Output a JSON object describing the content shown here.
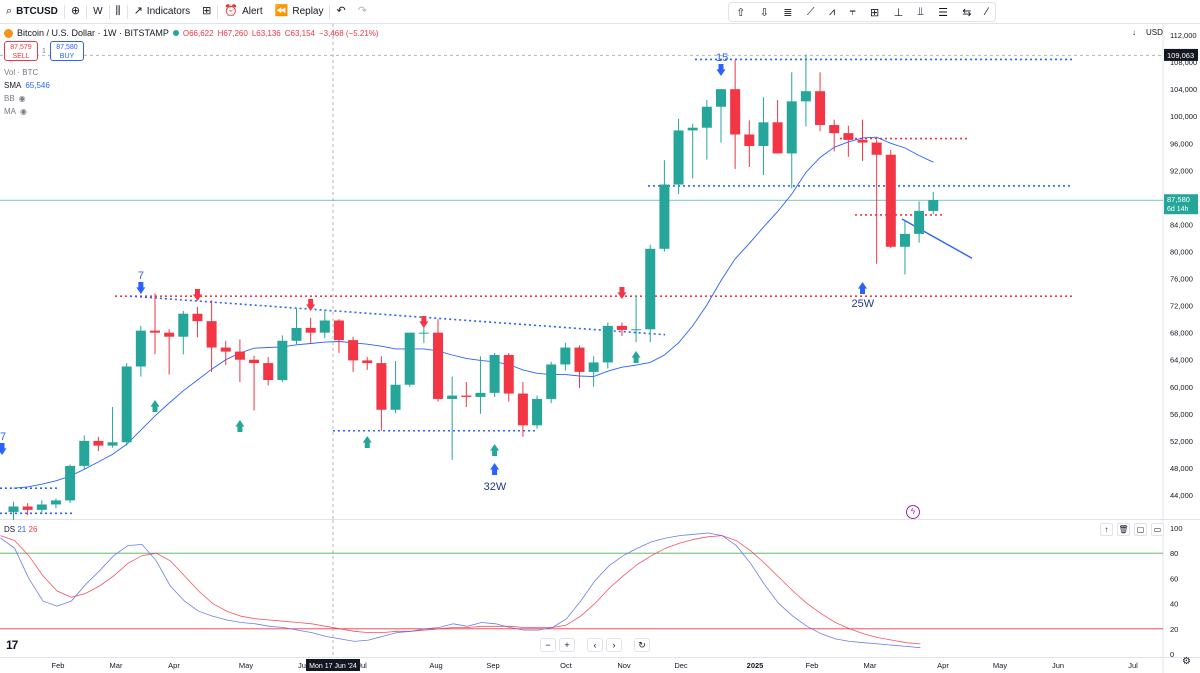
{
  "toolbar": {
    "symbol": "BTCUSD",
    "interval": "W",
    "indicators_label": "Indicators",
    "alert_label": "Alert",
    "replay_label": "Replay"
  },
  "legend": {
    "title": "Bitcoin / U.S. Dollar · 1W · BITSTAMP",
    "open": "O66,622",
    "high": "H67,260",
    "low": "L63,136",
    "close": "C63,154",
    "change": "−3,468 (−5.21%)",
    "sell_price": "87,579",
    "sell_label": "SELL",
    "spread": "1",
    "buy_price": "87,580",
    "buy_label": "BUY",
    "vol_label": "Vol · BTC",
    "sma_label": "SMA",
    "sma_value": "65,546",
    "bb_label": "BB",
    "ma_label": "MA"
  },
  "right_controls": {
    "currency": "USD"
  },
  "price_axis": {
    "ticks": [
      "112,000",
      "108,000",
      "104,000",
      "100,000",
      "96,000",
      "92,000",
      "88,000",
      "84,000",
      "80,000",
      "76,000",
      "72,000",
      "68,000",
      "64,000",
      "60,000",
      "56,000",
      "52,000",
      "48,000",
      "44,000"
    ],
    "last_price_label": "87,580",
    "countdown": "6d 14h",
    "high_label": "109,063"
  },
  "time_axis": {
    "labels": [
      "Feb",
      "Mar",
      "Apr",
      "May",
      "Jun",
      "Jul",
      "Aug",
      "Sep",
      "Oct",
      "Nov",
      "Dec",
      "2025",
      "Feb",
      "Mar",
      "Apr",
      "May",
      "Jun",
      "Jul"
    ],
    "crosshair_label": "Mon 17 Jun '24"
  },
  "annotations": {
    "label_15": "15",
    "label_7": "7",
    "label_7_edge": "7",
    "label_32w": "32W",
    "label_25w": "25W"
  },
  "oscillator": {
    "name": "DS",
    "param1": "21",
    "param2": "26",
    "ticks": [
      "100",
      "80",
      "60",
      "40",
      "20",
      "0"
    ]
  },
  "colors": {
    "up": "#26a69a",
    "down": "#f23645",
    "sma": "#2962ff",
    "annotation_blue": "#2962ff",
    "annotation_red": "#f23645"
  },
  "chart_data": {
    "type": "candlestick",
    "ylim": [
      40000,
      114000
    ],
    "candles": [
      {
        "o": 41500,
        "h": 43000,
        "l": 39800,
        "c": 42300
      },
      {
        "o": 42300,
        "h": 42800,
        "l": 41000,
        "c": 41800
      },
      {
        "o": 41800,
        "h": 43200,
        "l": 41200,
        "c": 42600
      },
      {
        "o": 42600,
        "h": 43500,
        "l": 42000,
        "c": 43200
      },
      {
        "o": 43200,
        "h": 48500,
        "l": 42800,
        "c": 48300
      },
      {
        "o": 48300,
        "h": 52800,
        "l": 47800,
        "c": 52000
      },
      {
        "o": 52000,
        "h": 52600,
        "l": 50500,
        "c": 51300
      },
      {
        "o": 51300,
        "h": 57000,
        "l": 51000,
        "c": 51800
      },
      {
        "o": 51800,
        "h": 63500,
        "l": 51300,
        "c": 63000
      },
      {
        "o": 63000,
        "h": 69000,
        "l": 61500,
        "c": 68300
      },
      {
        "o": 68300,
        "h": 73800,
        "l": 64800,
        "c": 68000
      },
      {
        "o": 68000,
        "h": 68500,
        "l": 61800,
        "c": 67400
      },
      {
        "o": 67400,
        "h": 71200,
        "l": 64800,
        "c": 70800
      },
      {
        "o": 70800,
        "h": 71800,
        "l": 67300,
        "c": 69700
      },
      {
        "o": 69700,
        "h": 72800,
        "l": 62200,
        "c": 65800
      },
      {
        "o": 65800,
        "h": 66800,
        "l": 63200,
        "c": 65200
      },
      {
        "o": 65200,
        "h": 67000,
        "l": 60700,
        "c": 64000
      },
      {
        "o": 64000,
        "h": 64600,
        "l": 56500,
        "c": 63500
      },
      {
        "o": 63500,
        "h": 64400,
        "l": 60200,
        "c": 61000
      },
      {
        "o": 61000,
        "h": 67600,
        "l": 60700,
        "c": 66800
      },
      {
        "o": 66800,
        "h": 71600,
        "l": 66300,
        "c": 68700
      },
      {
        "o": 68700,
        "h": 70200,
        "l": 66500,
        "c": 68000
      },
      {
        "o": 68000,
        "h": 71400,
        "l": 67200,
        "c": 69800
      },
      {
        "o": 69800,
        "h": 70000,
        "l": 65000,
        "c": 66900
      },
      {
        "o": 66900,
        "h": 67400,
        "l": 62200,
        "c": 63900
      },
      {
        "o": 63900,
        "h": 64400,
        "l": 62500,
        "c": 63500
      },
      {
        "o": 63500,
        "h": 64500,
        "l": 53500,
        "c": 56600
      },
      {
        "o": 56600,
        "h": 63800,
        "l": 56100,
        "c": 60300
      },
      {
        "o": 60300,
        "h": 68000,
        "l": 60000,
        "c": 68000
      },
      {
        "o": 68000,
        "h": 70000,
        "l": 66500,
        "c": 68000
      },
      {
        "o": 68000,
        "h": 70000,
        "l": 57800,
        "c": 58200
      },
      {
        "o": 58200,
        "h": 61500,
        "l": 49200,
        "c": 58700
      },
      {
        "o": 58700,
        "h": 60700,
        "l": 57000,
        "c": 58500
      },
      {
        "o": 58500,
        "h": 64500,
        "l": 56000,
        "c": 59100
      },
      {
        "o": 59100,
        "h": 65000,
        "l": 58500,
        "c": 64700
      },
      {
        "o": 64700,
        "h": 65000,
        "l": 57800,
        "c": 59000
      },
      {
        "o": 59000,
        "h": 60700,
        "l": 52600,
        "c": 54300
      },
      {
        "o": 54300,
        "h": 58700,
        "l": 53800,
        "c": 58200
      },
      {
        "o": 58200,
        "h": 63700,
        "l": 57600,
        "c": 63300
      },
      {
        "o": 63300,
        "h": 66500,
        "l": 62400,
        "c": 65800
      },
      {
        "o": 65800,
        "h": 66100,
        "l": 59800,
        "c": 62200
      },
      {
        "o": 62200,
        "h": 64500,
        "l": 60000,
        "c": 63600
      },
      {
        "o": 63600,
        "h": 69500,
        "l": 62700,
        "c": 69000
      },
      {
        "o": 69000,
        "h": 69500,
        "l": 67500,
        "c": 68400
      },
      {
        "o": 68400,
        "h": 73500,
        "l": 66600,
        "c": 68500
      },
      {
        "o": 68500,
        "h": 81000,
        "l": 66600,
        "c": 80400
      },
      {
        "o": 80400,
        "h": 93500,
        "l": 80000,
        "c": 89900
      },
      {
        "o": 89900,
        "h": 99600,
        "l": 88500,
        "c": 97900
      },
      {
        "o": 97900,
        "h": 98900,
        "l": 90800,
        "c": 98300
      },
      {
        "o": 98300,
        "h": 102400,
        "l": 93600,
        "c": 101400
      },
      {
        "o": 101400,
        "h": 104000,
        "l": 96100,
        "c": 104000
      },
      {
        "o": 104000,
        "h": 108300,
        "l": 92200,
        "c": 97300
      },
      {
        "o": 97300,
        "h": 99400,
        "l": 92500,
        "c": 95600
      },
      {
        "o": 95600,
        "h": 102800,
        "l": 91300,
        "c": 99100
      },
      {
        "o": 99100,
        "h": 102400,
        "l": 94500,
        "c": 94500
      },
      {
        "o": 94500,
        "h": 106500,
        "l": 89300,
        "c": 102200
      },
      {
        "o": 102200,
        "h": 109100,
        "l": 98500,
        "c": 103700
      },
      {
        "o": 103700,
        "h": 106500,
        "l": 97800,
        "c": 98700
      },
      {
        "o": 98700,
        "h": 99500,
        "l": 94800,
        "c": 97500
      },
      {
        "o": 97500,
        "h": 98600,
        "l": 94000,
        "c": 96500
      },
      {
        "o": 96500,
        "h": 99500,
        "l": 93400,
        "c": 96100
      },
      {
        "o": 96100,
        "h": 96500,
        "l": 78200,
        "c": 94300
      },
      {
        "o": 94300,
        "h": 95000,
        "l": 80500,
        "c": 80700
      },
      {
        "o": 80700,
        "h": 84500,
        "l": 76600,
        "c": 82600
      },
      {
        "o": 82600,
        "h": 87400,
        "l": 81300,
        "c": 86000
      },
      {
        "o": 86000,
        "h": 88800,
        "l": 85500,
        "c": 87580
      }
    ],
    "sma": [
      45000,
      45200,
      45600,
      46100,
      46800,
      47800,
      48900,
      50000,
      51500,
      53600,
      55700,
      57600,
      59400,
      61000,
      62600,
      64000,
      65000,
      65700,
      65800,
      65900,
      66200,
      66400,
      66600,
      66700,
      66500,
      66300,
      66000,
      65600,
      65600,
      65600,
      65300,
      64700,
      64200,
      63900,
      63700,
      63300,
      62500,
      62000,
      61800,
      61800,
      61600,
      61500,
      62300,
      62900,
      63200,
      63600,
      64700,
      66500,
      69000,
      72100,
      75700,
      78900,
      81200,
      83600,
      85900,
      88500,
      91700,
      93900,
      95400,
      96200,
      96800,
      96900,
      96000,
      95300,
      94200,
      93200
    ],
    "oscillator": {
      "ylim": [
        0,
        100
      ],
      "levels": [
        80,
        20
      ],
      "fast": [
        92,
        84,
        60,
        42,
        38,
        42,
        55,
        66,
        78,
        86,
        87,
        74,
        54,
        42,
        34,
        30,
        27,
        25,
        24,
        22,
        21,
        19,
        17,
        14,
        12,
        10,
        11,
        14,
        17,
        18,
        20,
        21,
        24,
        22,
        25,
        24,
        21,
        19,
        19,
        21,
        28,
        42,
        58,
        70,
        78,
        84,
        89,
        92,
        94,
        95,
        96,
        94,
        86,
        72,
        55,
        40,
        30,
        22,
        16,
        12,
        10,
        9,
        8,
        7,
        6,
        5
      ],
      "slow": [
        94,
        90,
        78,
        62,
        50,
        45,
        48,
        54,
        62,
        72,
        78,
        80,
        74,
        62,
        50,
        40,
        34,
        30,
        28,
        27,
        26,
        25,
        24,
        22,
        20,
        18,
        17,
        17,
        18,
        18,
        19,
        20,
        21,
        21,
        22,
        22,
        22,
        21,
        21,
        21,
        23,
        30,
        40,
        52,
        62,
        71,
        78,
        84,
        88,
        91,
        93,
        94,
        90,
        82,
        72,
        61,
        50,
        40,
        32,
        25,
        20,
        16,
        13,
        11,
        9,
        8
      ]
    }
  }
}
